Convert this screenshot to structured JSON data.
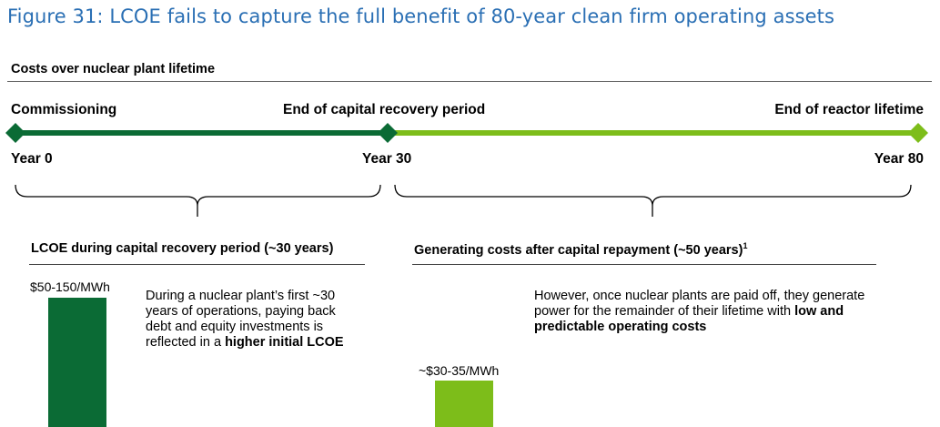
{
  "title": "Figure 31: LCOE fails to capture the full benefit of 80-year clean firm operating assets",
  "subtitle": "Costs over nuclear plant lifetime",
  "colors": {
    "title_blue": "#2a6fb4",
    "dark_green": "#0b6b35",
    "light_green": "#7dbd1a"
  },
  "timeline": {
    "milestones": [
      {
        "label": "Commissioning",
        "year": "Year 0"
      },
      {
        "label": "End of capital recovery period",
        "year": "Year 30"
      },
      {
        "label": "End of reactor lifetime",
        "year": "Year 80"
      }
    ]
  },
  "left": {
    "title": "LCOE during capital recovery period (~30 years)",
    "bar_label": "$50-150/MWh",
    "desc_plain": "During a nuclear plant’s first ~30 years of operations, paying back debt and equity investments is reflected in a ",
    "desc_bold": "higher initial LCOE"
  },
  "right": {
    "title": "Generating costs after capital repayment (~50 years)",
    "footnote": "1",
    "bar_label": "~$30-35/MWh",
    "desc_plain": "However, once nuclear plants are paid off, they generate power for the remainder of their lifetime with ",
    "desc_bold": "low and predictable operating costs"
  }
}
